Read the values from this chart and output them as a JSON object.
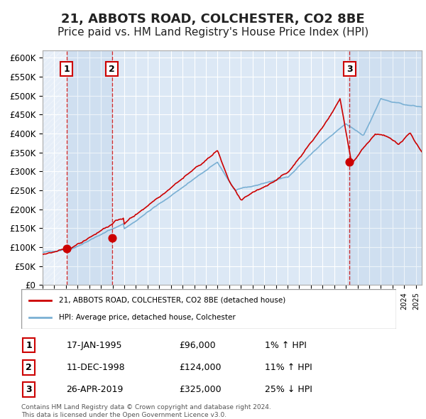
{
  "title": "21, ABBOTS ROAD, COLCHESTER, CO2 8BE",
  "subtitle": "Price paid vs. HM Land Registry's House Price Index (HPI)",
  "ylabel": "",
  "ylim": [
    0,
    620000
  ],
  "yticks": [
    0,
    50000,
    100000,
    150000,
    200000,
    250000,
    300000,
    350000,
    400000,
    450000,
    500000,
    550000,
    600000
  ],
  "ytick_labels": [
    "£0",
    "£50K",
    "£100K",
    "£150K",
    "£200K",
    "£250K",
    "£300K",
    "£350K",
    "£400K",
    "£450K",
    "£500K",
    "£550K",
    "£600K"
  ],
  "background_color": "#f0f4fa",
  "plot_bg_color": "#dce8f5",
  "grid_color": "#ffffff",
  "red_color": "#cc0000",
  "blue_color": "#7ab0d4",
  "title_fontsize": 13,
  "subtitle_fontsize": 11,
  "purchases": [
    {
      "label": "1",
      "date_num": 1995.04,
      "price": 96000,
      "hpi_pct": "1% ↑ HPI",
      "date_str": "17-JAN-1995"
    },
    {
      "label": "2",
      "date_num": 1998.94,
      "price": 124000,
      "hpi_pct": "11% ↑ HPI",
      "date_str": "11-DEC-1998"
    },
    {
      "label": "3",
      "date_num": 2019.32,
      "price": 325000,
      "hpi_pct": "25% ↓ HPI",
      "date_str": "26-APR-2019"
    }
  ],
  "legend_label_red": "21, ABBOTS ROAD, COLCHESTER, CO2 8BE (detached house)",
  "legend_label_blue": "HPI: Average price, detached house, Colchester",
  "footer": "Contains HM Land Registry data © Crown copyright and database right 2024.\nThis data is licensed under the Open Government Licence v3.0.",
  "xmin": 1993,
  "xmax": 2025.5
}
